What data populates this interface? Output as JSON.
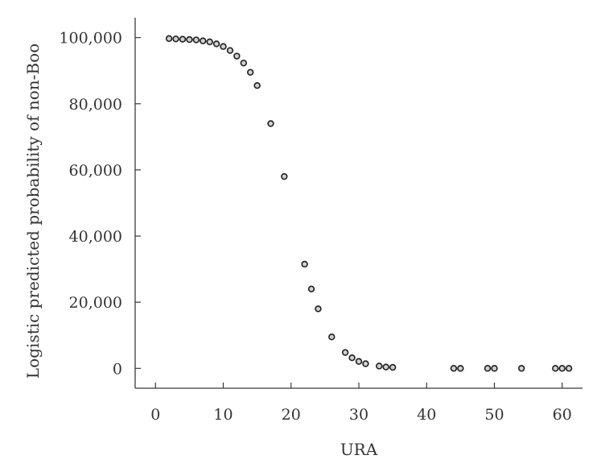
{
  "chart_data": {
    "type": "scatter",
    "title": "",
    "xlabel": "URA",
    "ylabel": "Logistic predicted probability of non-Boo",
    "xlim": [
      -3,
      63
    ],
    "ylim": [
      -6000,
      106000
    ],
    "x_ticks": [
      0,
      10,
      20,
      30,
      40,
      50,
      60
    ],
    "x_tick_labels": [
      "0",
      "10",
      "20",
      "30",
      "40",
      "50",
      "60"
    ],
    "y_ticks": [
      0,
      20000,
      40000,
      60000,
      80000,
      100000
    ],
    "y_tick_labels": [
      "0",
      "20,000",
      "40,000",
      "60,000",
      "80,000",
      "100,000"
    ],
    "grid": false,
    "legend": "none",
    "marker": "hollow-circle",
    "colors": {
      "marker_edge": "#1e1e1e",
      "marker_fill": "#d0d0d0",
      "axis": "#3a3a3a",
      "text": "#333333"
    },
    "series": [
      {
        "x": [
          2,
          3,
          4,
          5,
          6,
          7,
          8,
          9,
          10,
          11,
          12,
          13,
          14,
          15,
          17,
          19,
          22,
          23,
          24,
          26,
          28,
          29,
          30,
          31,
          33,
          34,
          35,
          44,
          45,
          49,
          50,
          54,
          59,
          60,
          61
        ],
        "y": [
          99700,
          99600,
          99500,
          99400,
          99300,
          99000,
          98700,
          98100,
          97300,
          96100,
          94400,
          92300,
          89500,
          85500,
          74000,
          58000,
          31500,
          24000,
          18000,
          9500,
          4800,
          3200,
          2100,
          1400,
          700,
          400,
          300,
          0,
          0,
          0,
          0,
          0,
          0,
          0,
          0
        ]
      }
    ]
  }
}
